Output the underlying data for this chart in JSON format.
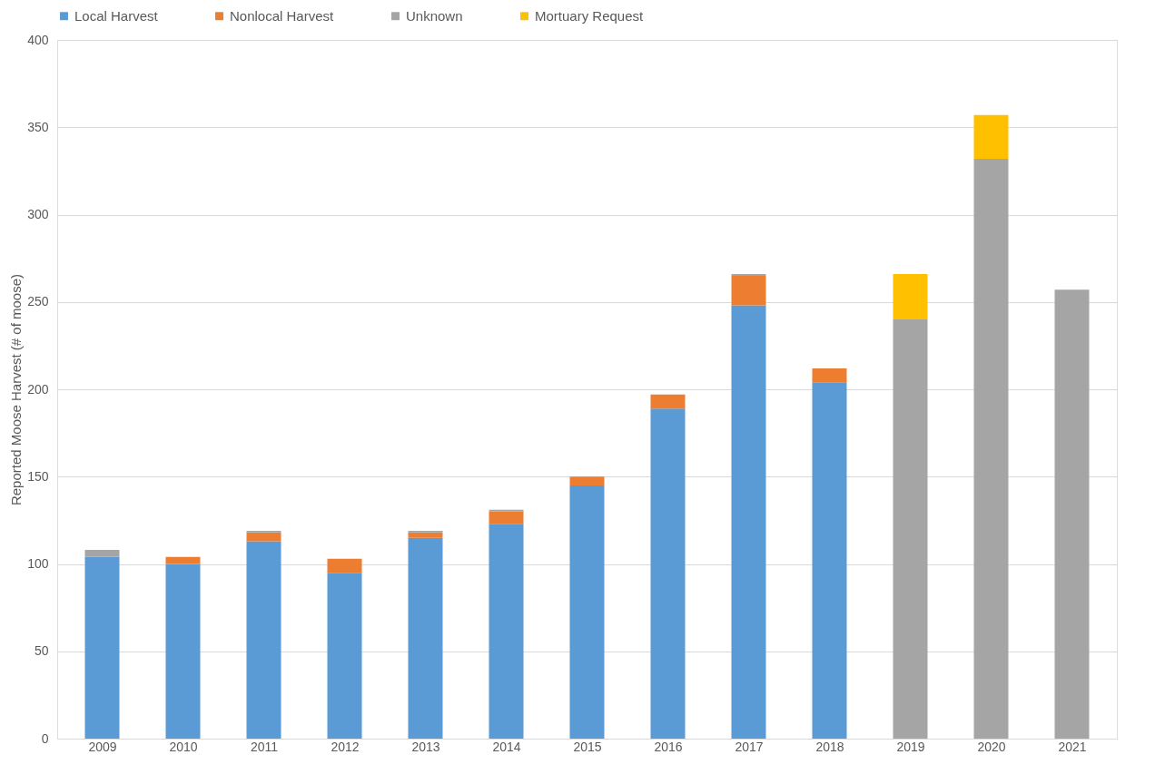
{
  "chart_data": {
    "type": "bar",
    "stacked": true,
    "ylabel": "Reported Moose Harvest (# of moose)",
    "categories": [
      "2009",
      "2010",
      "2011",
      "2012",
      "2013",
      "2014",
      "2015",
      "2016",
      "2017",
      "2018",
      "2019",
      "2020",
      "2021"
    ],
    "series": [
      {
        "name": "Local Harvest",
        "color": "#5b9bd5",
        "values": [
          104,
          100,
          113,
          95,
          115,
          123,
          145,
          189,
          248,
          204,
          null,
          null,
          null
        ]
      },
      {
        "name": "Nonlocal Harvest",
        "color": "#ed7d31",
        "values": [
          null,
          4,
          5,
          8,
          3,
          7,
          5,
          8,
          17,
          8,
          null,
          null,
          null
        ]
      },
      {
        "name": "Unknown",
        "color": "#a5a5a5",
        "values": [
          4,
          null,
          1,
          null,
          1,
          1,
          null,
          null,
          1,
          null,
          240,
          332,
          257
        ]
      },
      {
        "name": "Mortuary Request",
        "color": "#ffc000",
        "values": [
          null,
          null,
          null,
          null,
          null,
          null,
          null,
          null,
          null,
          null,
          26,
          25,
          null
        ]
      }
    ],
    "ylim": [
      0,
      400
    ],
    "yticks": [
      0,
      50,
      100,
      150,
      200,
      250,
      300,
      350,
      400
    ],
    "grid": "y",
    "legend": "top"
  }
}
